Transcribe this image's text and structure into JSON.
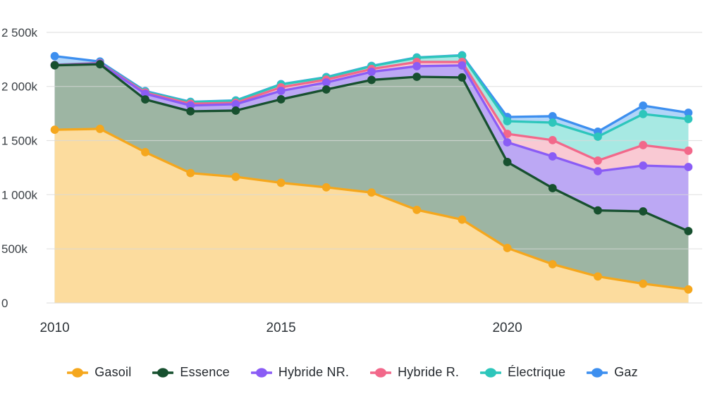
{
  "chart_data": {
    "type": "area",
    "stacked": true,
    "title": "",
    "xlabel": "",
    "ylabel": "",
    "values_unit": "k (thousands of vehicles)",
    "grid": "horizontal",
    "legend_position": "bottom",
    "x": [
      2010,
      2011,
      2012,
      2013,
      2014,
      2015,
      2016,
      2017,
      2018,
      2019,
      2020,
      2021,
      2022,
      2023,
      2024
    ],
    "x_ticks": [
      {
        "value": 2010,
        "label": "2010"
      },
      {
        "value": 2015,
        "label": "2015"
      },
      {
        "value": 2020,
        "label": "2020"
      }
    ],
    "y_ticks": [
      {
        "value": 0,
        "label": "0"
      },
      {
        "value": 500,
        "label": "500k"
      },
      {
        "value": 1000,
        "label": "1 000k"
      },
      {
        "value": 1500,
        "label": "1 500k"
      },
      {
        "value": 2000,
        "label": "2 000k"
      },
      {
        "value": 2500,
        "label": "2 500k"
      }
    ],
    "ylim": [
      0,
      2600
    ],
    "series": [
      {
        "id": "gasoil",
        "name": "Gasoil",
        "color": "#F5A71D",
        "fill": "#FCDC9E",
        "values": [
          1600,
          1608,
          1393,
          1200,
          1165,
          1110,
          1068,
          1020,
          860,
          770,
          508,
          358,
          245,
          178,
          125
        ]
      },
      {
        "id": "essence",
        "name": "Essence",
        "color": "#17502F",
        "fill": "#9DB5A3",
        "values": [
          595,
          597,
          487,
          570,
          612,
          771,
          904,
          1040,
          1229,
          1313,
          794,
          703,
          610,
          668,
          539
        ]
      },
      {
        "id": "hybride-nr",
        "name": "Hybride NR.",
        "color": "#8A5CF5",
        "fill": "#BCA8F4",
        "values": [
          2,
          7,
          53,
          54,
          59,
          78,
          65,
          75,
          98,
          111,
          182,
          293,
          362,
          423,
          592
        ]
      },
      {
        "id": "hybride-r",
        "name": "Hybride R.",
        "color": "#F2688A",
        "fill": "#F9C9D3",
        "values": [
          2,
          4,
          10,
          16,
          13,
          33,
          26,
          26,
          39,
          32,
          78,
          150,
          98,
          189,
          150
        ]
      },
      {
        "id": "electrique",
        "name": "Électrique",
        "color": "#2DC6BB",
        "fill": "#A7E9E3",
        "values": [
          1,
          2,
          9,
          15,
          19,
          26,
          20,
          26,
          39,
          59,
          117,
          162,
          221,
          287,
          293
        ]
      },
      {
        "id": "gaz",
        "name": "Gaz",
        "color": "#3D8FEF",
        "fill": "#B2D5F8",
        "values": [
          80,
          12,
          5,
          3,
          3,
          3,
          3,
          3,
          3,
          3,
          39,
          59,
          46,
          78,
          58
        ]
      }
    ],
    "gridline_color": "#d9d9d9",
    "background_color": "#ffffff"
  }
}
